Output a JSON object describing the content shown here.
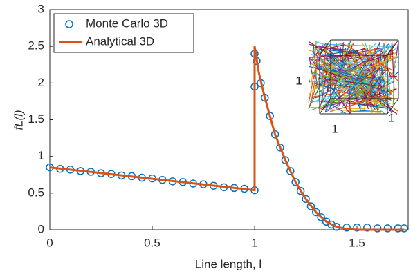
{
  "chart_data": {
    "type": "line",
    "xlabel": "Line length, l",
    "ylabel": "fL(l)",
    "xlim": [
      0,
      1.75
    ],
    "ylim": [
      0,
      3
    ],
    "xticks": [
      0,
      0.5,
      1,
      1.5
    ],
    "yticks": [
      0,
      0.5,
      1,
      1.5,
      2,
      2.5,
      3
    ],
    "legend": "upper left",
    "series": [
      {
        "name": "Monte Carlo 3D",
        "color": "#0072bd",
        "marker": "circle",
        "x": [
          0,
          0.05,
          0.1,
          0.15,
          0.2,
          0.25,
          0.3,
          0.35,
          0.4,
          0.45,
          0.5,
          0.55,
          0.6,
          0.65,
          0.7,
          0.75,
          0.8,
          0.85,
          0.9,
          0.95,
          1,
          1,
          1,
          1.01,
          1.03,
          1.05,
          1.075,
          1.1,
          1.125,
          1.15,
          1.175,
          1.2,
          1.225,
          1.25,
          1.275,
          1.3,
          1.325,
          1.35,
          1.375,
          1.4,
          1.45,
          1.5,
          1.55,
          1.6,
          1.65,
          1.7,
          1.73
        ],
        "values": [
          0.85,
          0.83,
          0.82,
          0.8,
          0.79,
          0.77,
          0.76,
          0.74,
          0.73,
          0.71,
          0.7,
          0.68,
          0.66,
          0.65,
          0.63,
          0.62,
          0.6,
          0.58,
          0.57,
          0.56,
          0.54,
          1.95,
          2.4,
          2.3,
          2.0,
          1.8,
          1.55,
          1.3,
          1.12,
          0.95,
          0.8,
          0.65,
          0.53,
          0.42,
          0.32,
          0.24,
          0.17,
          0.11,
          0.07,
          0.04,
          0.03,
          0.03,
          0.03,
          0.02,
          0.02,
          0.02,
          0.02
        ]
      },
      {
        "name": "Analytical 3D",
        "color": "#d95319",
        "marker": "none",
        "x": [
          0,
          1,
          1,
          1.02,
          1.05,
          1.1,
          1.15,
          1.2,
          1.25,
          1.3,
          1.35,
          1.4,
          1.45,
          1.5,
          1.73
        ],
        "values": [
          0.85,
          0.54,
          2.5,
          2.15,
          1.8,
          1.3,
          0.95,
          0.65,
          0.42,
          0.24,
          0.11,
          0.04,
          0.01,
          0,
          0
        ]
      }
    ],
    "inset": {
      "labels": [
        "1",
        "1",
        "1"
      ]
    }
  }
}
